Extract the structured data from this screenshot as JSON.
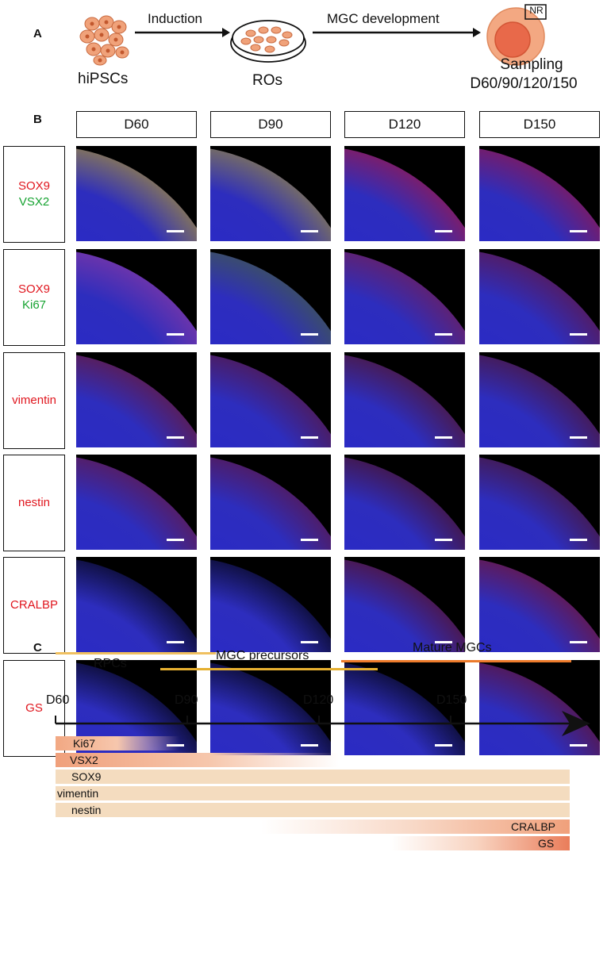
{
  "panel_a": {
    "letter": "A",
    "step1": "Induction",
    "step2": "MGC development",
    "cell_label": "hiPSCs",
    "dish_label": "ROs",
    "organoid_tag": "NR",
    "sampling_line1": "Sampling",
    "sampling_line2": "D60/90/120/150"
  },
  "panel_b": {
    "letter": "B",
    "columns": [
      "D60",
      "D90",
      "D120",
      "D150"
    ],
    "rows": [
      {
        "marker1": "SOX9",
        "marker2": "VSX2"
      },
      {
        "marker1": "SOX9",
        "marker2": "Ki67"
      },
      {
        "marker1": "vimentin",
        "marker2": ""
      },
      {
        "marker1": "nestin",
        "marker2": ""
      },
      {
        "marker1": "CRALBP",
        "marker2": ""
      },
      {
        "marker1": "GS",
        "marker2": ""
      }
    ],
    "colors": {
      "red_marker": "#e0161e",
      "green_marker": "#16a331",
      "nucleus": "#1a1aff"
    }
  },
  "panel_c": {
    "letter": "C",
    "stages": [
      {
        "label": "RPCs",
        "color": "#f0c060"
      },
      {
        "label": "MGC precursors",
        "color": "#e6b030"
      },
      {
        "label": "Mature MGCs",
        "color": "#ec7a2a"
      }
    ],
    "timepoints": [
      "D60",
      "D90",
      "D120",
      "D150"
    ],
    "markers": [
      "Ki67",
      "VSX2",
      "SOX9",
      "vimentin",
      "nestin",
      "CRALBP",
      "GS"
    ]
  }
}
